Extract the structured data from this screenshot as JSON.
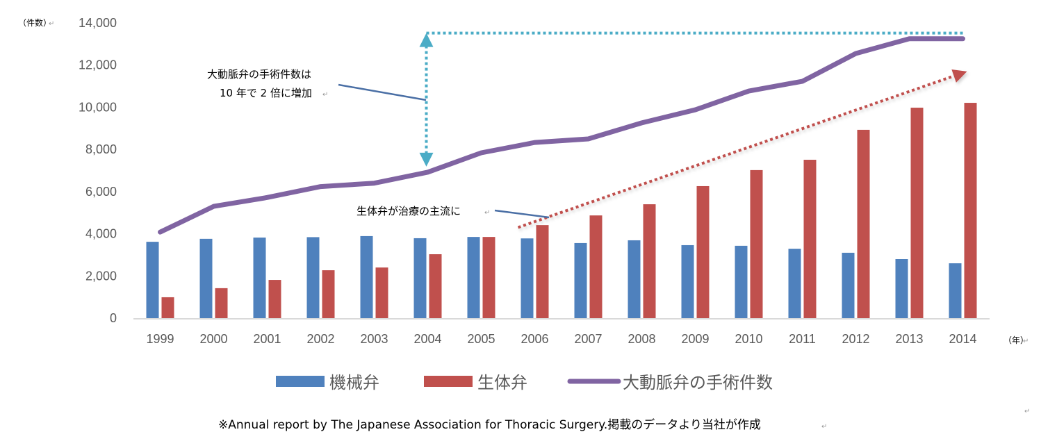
{
  "chart_data": {
    "type": "bar",
    "title": "",
    "xlabel": "（年）",
    "ylabel": "（件数）",
    "ylim": [
      0,
      14000
    ],
    "yticks": [
      "0",
      "2,000",
      "4,000",
      "6,000",
      "8,000",
      "10,000",
      "12,000",
      "14,000"
    ],
    "ytick_values": [
      0,
      2000,
      4000,
      6000,
      8000,
      10000,
      12000,
      14000
    ],
    "grid": false,
    "categories": [
      "1999",
      "2000",
      "2001",
      "2002",
      "2003",
      "2004",
      "2005",
      "2006",
      "2007",
      "2008",
      "2009",
      "2010",
      "2011",
      "2012",
      "2013",
      "2014"
    ],
    "series": [
      {
        "name": "機械弁",
        "type": "bar",
        "color": "#4f81bd",
        "values": [
          3620,
          3760,
          3820,
          3840,
          3890,
          3790,
          3850,
          3780,
          3560,
          3690,
          3460,
          3430,
          3290,
          3100,
          2800,
          2600
        ]
      },
      {
        "name": "生体弁",
        "type": "bar",
        "color": "#c0504d",
        "values": [
          990,
          1420,
          1810,
          2270,
          2400,
          3030,
          3850,
          4410,
          4870,
          5400,
          6260,
          7020,
          7510,
          8930,
          9980,
          10210
        ]
      },
      {
        "name": "大動脈弁の手術件数",
        "type": "line",
        "color": "#8064a2",
        "values": [
          4080,
          5300,
          5720,
          6240,
          6400,
          6920,
          7840,
          8330,
          8500,
          9260,
          9880,
          10770,
          11230,
          12550,
          13250,
          13250
        ]
      }
    ],
    "legend": {
      "position": "bottom"
    },
    "annotations": [
      {
        "id": "doubling",
        "text_lines": [
          "大動脈弁の手術件数は",
          "10 年で 2 倍に増加"
        ],
        "color": "#4bacc6",
        "from_category": "2004",
        "to_level": 13520
      },
      {
        "id": "bio-mainstream",
        "text": "生体弁が治療の主流に",
        "trend_color": "#c0504d",
        "trend_from": {
          "category": "2006",
          "value": 4300
        },
        "trend_to": {
          "category": "2014",
          "value": 11700
        }
      }
    ]
  },
  "footer": {
    "source": "※Annual report by The Japanese Association for Thoracic Surgery.掲載のデータより当社が作成"
  },
  "colors": {
    "mechanical": "#4f81bd",
    "bio": "#c0504d",
    "total": "#8064a2",
    "callout_arrow": "#4bacc6",
    "callout_line": "#4a6fa5",
    "axis": "#d9d9d9",
    "tick_text": "#595959"
  }
}
